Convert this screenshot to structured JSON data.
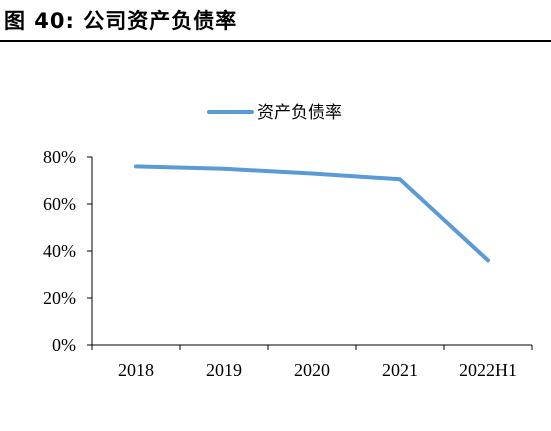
{
  "figure": {
    "title": "图 40:  公司资产负债率"
  },
  "chart_data": {
    "type": "line",
    "title": "",
    "xlabel": "",
    "ylabel": "",
    "categories": [
      "2018",
      "2019",
      "2020",
      "2021",
      "2022H1"
    ],
    "series": [
      {
        "name": "资产负债率",
        "values": [
          76,
          75,
          73,
          70.5,
          36
        ],
        "color": "#5b9bd5"
      }
    ],
    "ylim": [
      0,
      80
    ],
    "yticks": [
      0,
      20,
      40,
      60,
      80
    ],
    "ytick_labels": [
      "0%",
      "20%",
      "40%",
      "60%",
      "80%"
    ],
    "legend_position": "top-center",
    "grid": false
  }
}
